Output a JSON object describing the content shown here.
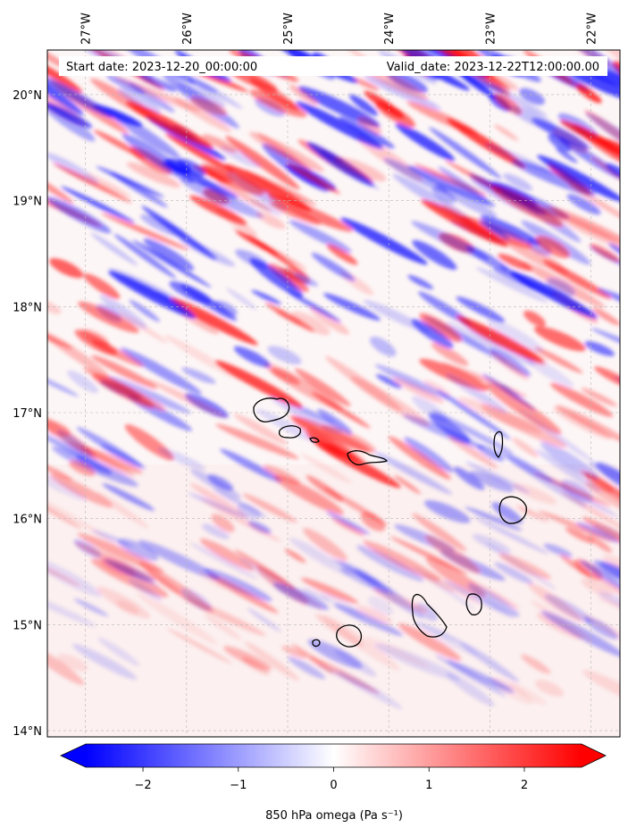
{
  "header": {
    "start_date": "Start date: 2023-12-20_00:00:00",
    "valid_date": "Valid_date: 2023-12-22T12:00:00.00"
  },
  "map": {
    "lon_ticks": [
      {
        "value": -27,
        "label": "27°W"
      },
      {
        "value": -26,
        "label": "26°W"
      },
      {
        "value": -25,
        "label": "25°W"
      },
      {
        "value": -24,
        "label": "24°W"
      },
      {
        "value": -23,
        "label": "23°W"
      },
      {
        "value": -22,
        "label": "22°W"
      }
    ],
    "lat_ticks": [
      {
        "value": 20,
        "label": "20°N"
      },
      {
        "value": 19,
        "label": "19°N"
      },
      {
        "value": 18,
        "label": "18°N"
      },
      {
        "value": 17,
        "label": "17°N"
      },
      {
        "value": 16,
        "label": "16°N"
      },
      {
        "value": 15,
        "label": "15°N"
      },
      {
        "value": 14,
        "label": "14°N"
      }
    ],
    "field_colors": {
      "negative": "#0000ff",
      "neutral": "#ffffff",
      "positive": "#ff0000"
    }
  },
  "colorbar": {
    "label": "850 hPa omega (Pa s⁻¹)",
    "range": [
      -2.6,
      2.6
    ],
    "extend": "both",
    "ticks": [
      {
        "value": -2,
        "label": "−2"
      },
      {
        "value": -1,
        "label": "−1"
      },
      {
        "value": 0,
        "label": "0"
      },
      {
        "value": 1,
        "label": "1"
      },
      {
        "value": 2,
        "label": "2"
      }
    ]
  }
}
